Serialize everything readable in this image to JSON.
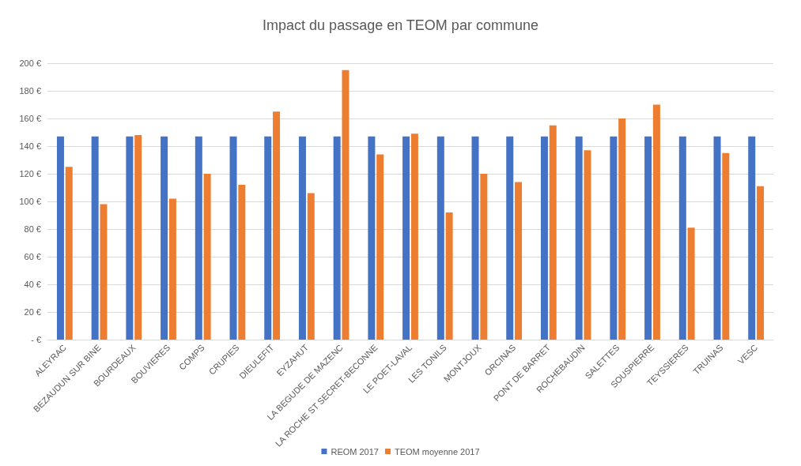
{
  "chart_data": {
    "type": "bar",
    "title": "Impact du passage en TEOM par commune",
    "categories": [
      "ALEYRAC",
      "BEZAUDUN SUR BINE",
      "BOURDEAUX",
      "BOUVIERES",
      "COMPS",
      "CRUPIES",
      "DIEULEFIT",
      "EYZAHUT",
      "LA BEGUDE DE MAZENC",
      "LA ROCHE ST SECRET-BECONNE",
      "LE POET-LAVAL",
      "LES TONILS",
      "MONTJOUX",
      "ORCINAS",
      "PONT DE BARRET",
      "ROCHEBAUDIN",
      "SALETTES",
      "SOUSPIERRE",
      "TEYSSIERES",
      "TRUINAS",
      "VESC"
    ],
    "series": [
      {
        "name": "REOM 2017",
        "color": "#4472c4",
        "values": [
          147,
          147,
          147,
          147,
          147,
          147,
          147,
          147,
          147,
          147,
          147,
          147,
          147,
          147,
          147,
          147,
          147,
          147,
          147,
          147,
          147
        ]
      },
      {
        "name": "TEOM moyenne 2017",
        "color": "#ed7d31",
        "values": [
          125,
          98,
          148,
          102,
          120,
          112,
          165,
          106,
          195,
          134,
          149,
          92,
          120,
          114,
          155,
          137,
          160,
          170,
          81,
          135,
          111
        ]
      }
    ],
    "ylim": [
      0,
      200
    ],
    "yticks": [
      {
        "value": 0,
        "label": "- €"
      },
      {
        "value": 20,
        "label": "20 €"
      },
      {
        "value": 40,
        "label": "40 €"
      },
      {
        "value": 60,
        "label": "60 €"
      },
      {
        "value": 80,
        "label": "80 €"
      },
      {
        "value": 100,
        "label": "100 €"
      },
      {
        "value": 120,
        "label": "120 €"
      },
      {
        "value": 140,
        "label": "140 €"
      },
      {
        "value": 160,
        "label": "160 €"
      },
      {
        "value": 180,
        "label": "180 €"
      },
      {
        "value": 200,
        "label": "200 €"
      }
    ],
    "grid": "y",
    "legend": "bottom"
  }
}
